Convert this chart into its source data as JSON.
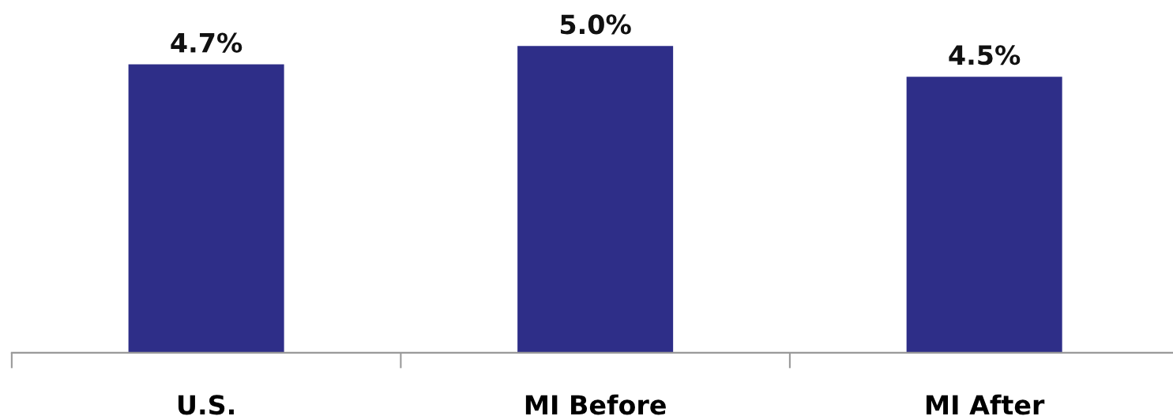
{
  "chart_data": {
    "type": "bar",
    "categories": [
      "U.S.",
      "MI Before",
      "MI After"
    ],
    "values": [
      4.7,
      5.0,
      4.5
    ],
    "value_labels": [
      "4.7%",
      "5.0%",
      "4.5%"
    ],
    "color": "#2e2e88",
    "grid": false,
    "legend": false
  }
}
